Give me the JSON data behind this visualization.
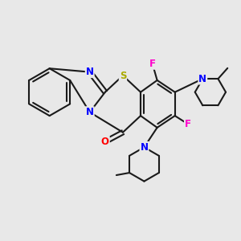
{
  "bg_color": "#e8e8e8",
  "bond_color": "#1a1a1a",
  "bond_width": 1.5,
  "dbo": 0.07,
  "atom_colors": {
    "N": "#0000ff",
    "S": "#aaaa00",
    "O": "#ff0000",
    "F": "#ff00cc"
  },
  "fs": 8.5
}
